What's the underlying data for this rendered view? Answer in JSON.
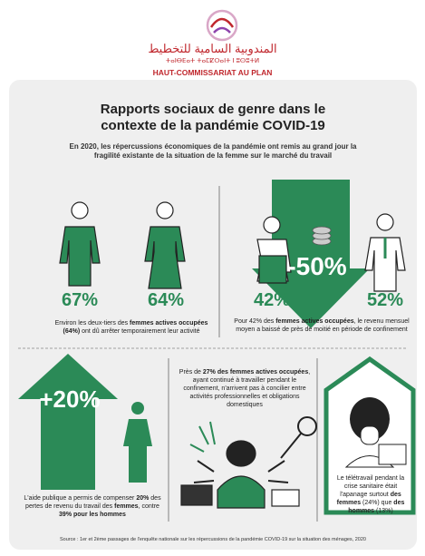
{
  "header": {
    "arabic": "المندوبية السامية للتخطيط",
    "tifinagh": "ⵜⴰⵏⴱⴹⴰⵜ ⵜⴰⵎⵇⵔⴰⵏⵜ ⵏ ⵓⵙⵓⵜⵍ",
    "name": "HAUT-COMMISSARIAT AU PLAN"
  },
  "title": "Rapports sociaux de genre dans le contexte de la pandémie COVID-19",
  "subtitle": "En 2020, les répercussions économiques de la pandémie ont remis au grand jour la fragilité existante de la situation de la femme sur le marché du travail",
  "stats": {
    "men_stopped": "67%",
    "women_stopped": "64%",
    "women_income_drop": "42%",
    "men_income_drop": "52%",
    "income_change": "-50%",
    "aid_share": "+20%"
  },
  "captions": {
    "stopped": [
      {
        "text": "Environ les deux-tiers des ",
        "bold": false
      },
      {
        "text": "femmes actives occupées (64%)",
        "bold": true
      },
      {
        "text": " ont dû arrêter temporairement leur activité",
        "bold": false
      }
    ],
    "income": [
      {
        "text": "Pour 42% des ",
        "bold": false
      },
      {
        "text": "femmes actives occupées",
        "bold": true
      },
      {
        "text": ", le revenu mensuel moyen a baissé de près de moitié en période de confinement",
        "bold": false
      }
    ],
    "aid": [
      {
        "text": "L'aide publique a permis de compenser ",
        "bold": false
      },
      {
        "text": "20%",
        "bold": true
      },
      {
        "text": " des pertes de revenu du travail des ",
        "bold": false
      },
      {
        "text": "femmes",
        "bold": true
      },
      {
        "text": ", contre ",
        "bold": false
      },
      {
        "text": "39% pour les hommes",
        "bold": true
      }
    ],
    "balance": [
      {
        "text": "Près de ",
        "bold": false
      },
      {
        "text": "27% des femmes actives occupées",
        "bold": true
      },
      {
        "text": ", ayant continué à travailler pendant le confinement, n'arrivent pas à concilier entre activités professionnelles et obligations domestiques",
        "bold": false
      }
    ],
    "telework": [
      {
        "text": "Le télétravail pendant la crise sanitaire était l'apanage surtout ",
        "bold": false
      },
      {
        "text": "des femmes",
        "bold": true
      },
      {
        "text": " (24%) que ",
        "bold": false
      },
      {
        "text": "des hommes",
        "bold": true
      },
      {
        "text": " (13%)",
        "bold": false
      }
    ]
  },
  "source": "Source : 1er et 2ème passages de l'enquête nationale sur les répercussions de la pandémie COVID-19 sur la situation des ménages, 2020"
}
